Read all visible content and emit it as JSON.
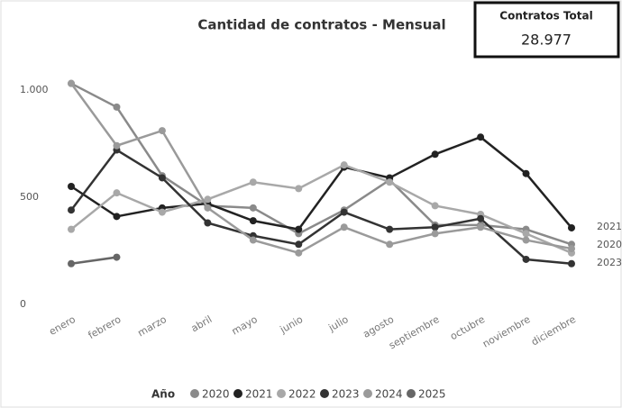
{
  "chart_data": {
    "type": "line",
    "title": "Cantidad de contratos - Mensual",
    "categories": [
      "enero",
      "febrero",
      "marzo",
      "abril",
      "mayo",
      "junio",
      "julio",
      "agosto",
      "septiembre",
      "octubre",
      "noviembre",
      "diciembre"
    ],
    "ylim": [
      0,
      1100
    ],
    "yticks": [
      0,
      500,
      {
        "value": 1000,
        "label": "1.000"
      }
    ],
    "legend_title": "Año",
    "series": [
      {
        "name": "2020",
        "color": "#8a8a8a",
        "values": [
          1030,
          920,
          600,
          460,
          450,
          330,
          440,
          580,
          370,
          370,
          350,
          280
        ]
      },
      {
        "name": "2021",
        "color": "#222222",
        "values": [
          550,
          410,
          450,
          470,
          390,
          350,
          640,
          590,
          700,
          780,
          610,
          357
        ]
      },
      {
        "name": "2022",
        "color": "#a8a8a8",
        "values": [
          350,
          520,
          430,
          490,
          570,
          540,
          650,
          570,
          460,
          420,
          330,
          240
        ]
      },
      {
        "name": "2023",
        "color": "#333333",
        "values": [
          440,
          720,
          590,
          380,
          320,
          280,
          430,
          350,
          360,
          400,
          210,
          190
        ]
      },
      {
        "name": "2024",
        "color": "#9a9a9a",
        "values": [
          1030,
          740,
          810,
          450,
          300,
          240,
          360,
          280,
          330,
          360,
          300,
          260
        ]
      },
      {
        "name": "2025",
        "color": "#666666",
        "values": [
          190,
          220,
          null,
          null,
          null,
          null,
          null,
          null,
          null,
          null,
          null,
          null
        ]
      }
    ],
    "end_labels": [
      1,
      0,
      3
    ]
  },
  "kpi": {
    "title": "Contratos Total",
    "value": "28.977"
  }
}
